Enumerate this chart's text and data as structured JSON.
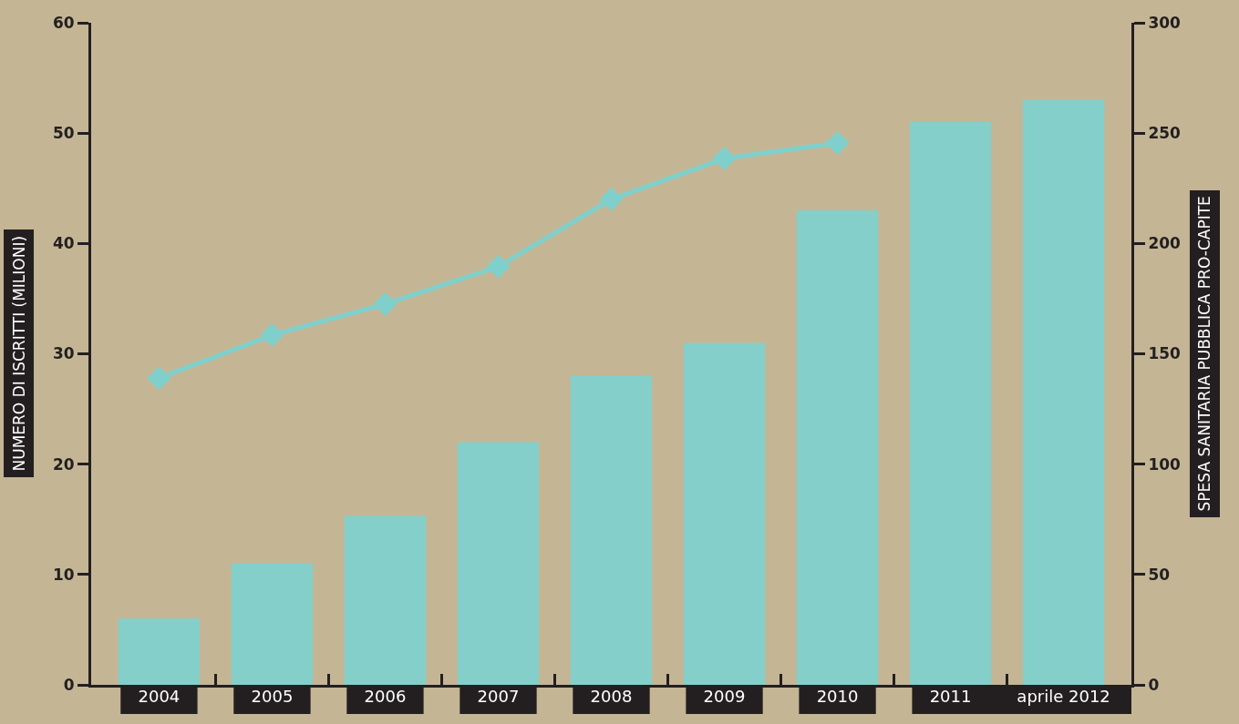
{
  "chart_data": {
    "type": "bar",
    "ylabel": "NUMERO DI ISCRITTI (MILIONI)",
    "y2label": "SPESA SANITARIA PUBBLICA PRO-CAPITE",
    "categories": [
      "2004",
      "2005",
      "2006",
      "2007",
      "2008",
      "2009",
      "2010",
      "2011",
      "aprile 2012"
    ],
    "series": [
      {
        "color": "#84cfca",
        "values": [
          6,
          11,
          15.3,
          22,
          28,
          31,
          43,
          51,
          53
        ]
      },
      {
        "type": "line",
        "axis": "y2",
        "color": "#7fd0cc",
        "marker": "diamond",
        "line_style": "solid",
        "values": [
          139,
          158.5,
          172.5,
          189.5,
          220,
          238.5,
          245.5,
          null,
          null
        ]
      }
    ],
    "ylim": [
      0,
      60
    ],
    "yticks": [
      0,
      10,
      20,
      30,
      40,
      50,
      60
    ],
    "y2lim": [
      0,
      300
    ],
    "y2ticks": [
      0,
      50,
      100,
      150,
      200,
      250,
      300
    ],
    "grid": false
  }
}
